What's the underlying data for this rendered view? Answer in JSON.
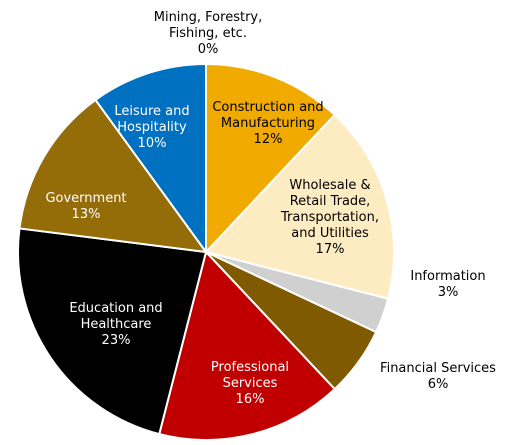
{
  "chart_data": {
    "type": "pie",
    "categories": [
      "Mining, Forestry, Fishing, etc.",
      "Construction and Manufacturing",
      "Wholesale & Retail Trade, Transportation, and Utilities",
      "Information",
      "Financial Services",
      "Professional Services",
      "Education and Healthcare",
      "Government",
      "Leisure and Hospitality"
    ],
    "values": [
      0,
      12,
      17,
      3,
      6,
      16,
      23,
      13,
      10
    ],
    "value_labels": [
      "0%",
      "12%",
      "17%",
      "3%",
      "6%",
      "16%",
      "23%",
      "13%",
      "10%"
    ],
    "colors": [
      "#7f7f7f",
      "#f0aa00",
      "#fdebc2",
      "#d0d0d0",
      "#7f5a00",
      "#c00000",
      "#000000",
      "#946c08",
      "#0070c0"
    ]
  }
}
